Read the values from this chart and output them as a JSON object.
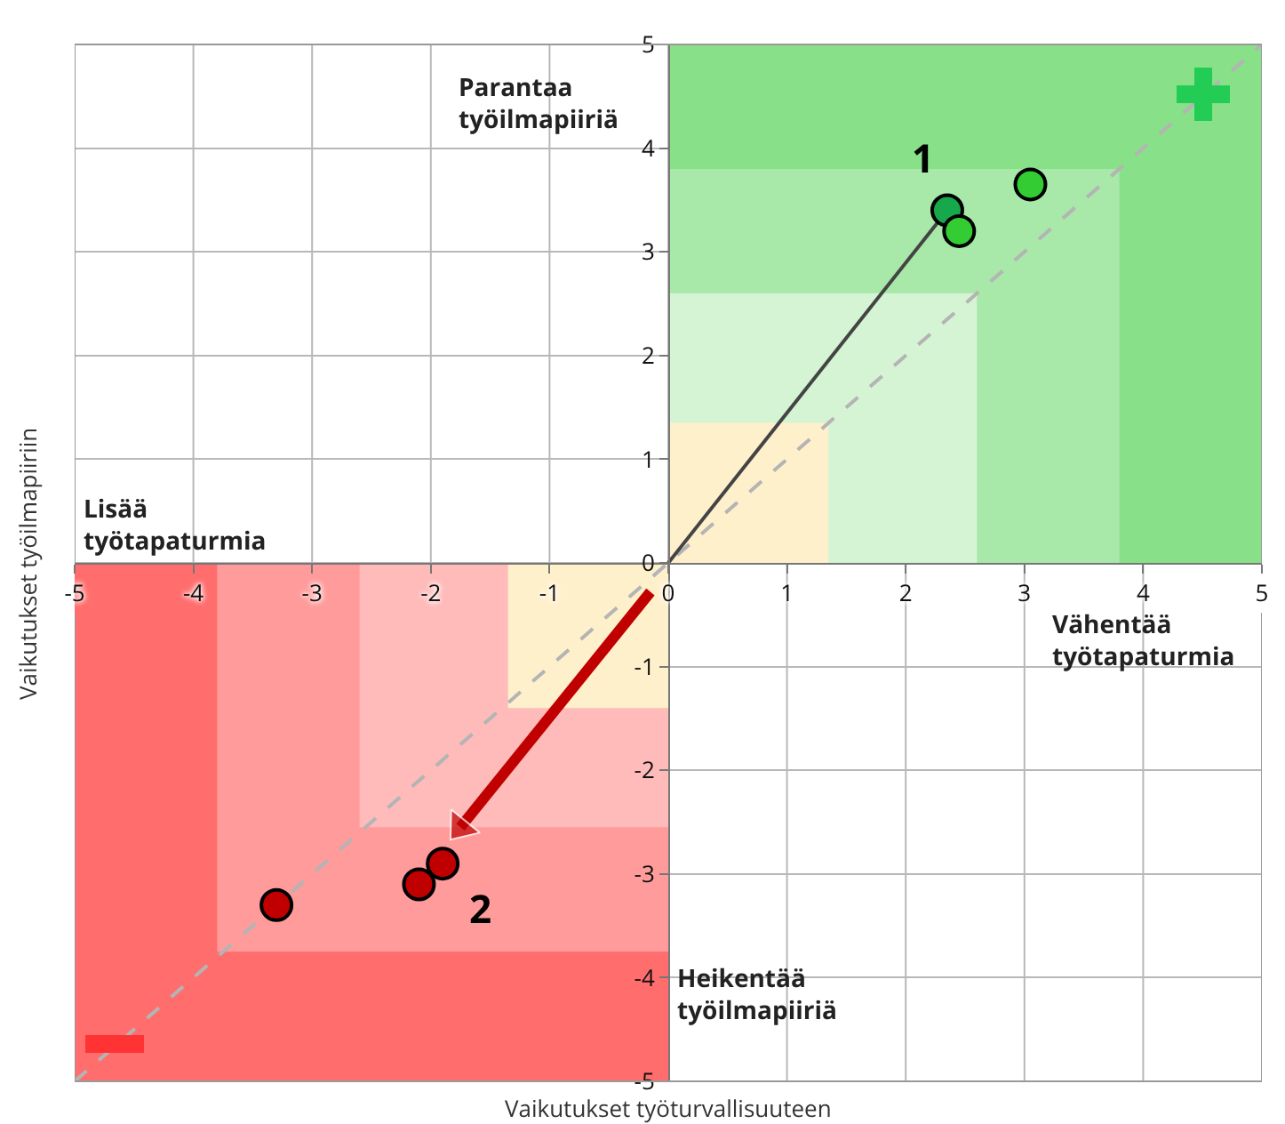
{
  "chart_data": {
    "type": "scatter",
    "xlabel": "Vaikutukset työturvallisuuteen",
    "ylabel": "Vaikutukset työilmapiiriin",
    "xlim": [
      -5,
      5
    ],
    "ylim": [
      -5,
      5
    ],
    "xticks": [
      -5,
      -4,
      -3,
      -2,
      -1,
      0,
      1,
      2,
      3,
      4,
      5
    ],
    "yticks": [
      -5,
      -4,
      -3,
      -2,
      -1,
      0,
      1,
      2,
      3,
      4,
      5
    ],
    "grid": true,
    "annotations": [
      "Parantaa\ntyöilmapiiriä",
      "Lisää\ntyötapaturmia",
      "Vähentää\ntyötapaturmia",
      "Heikentää\ntyöilmapiiriä",
      "1",
      "2"
    ],
    "series": [
      {
        "type": "area",
        "color": "#88e088",
        "x": [
          0,
          5
        ],
        "values": [
          5,
          5
        ]
      },
      {
        "type": "area",
        "color": "#a8e8a8",
        "x": [
          0,
          3.8
        ],
        "values": [
          3.8,
          3.8
        ]
      },
      {
        "type": "area",
        "color": "#d4f4d4",
        "x": [
          0,
          2.6
        ],
        "values": [
          2.6,
          2.6
        ]
      },
      {
        "type": "area",
        "color": "#fff0cc",
        "x": [
          0,
          1.35
        ],
        "values": [
          1.35,
          1.35
        ]
      },
      {
        "type": "area",
        "color": "#ff6d6d",
        "x": [
          -5,
          0
        ],
        "values": [
          -5,
          -5
        ]
      },
      {
        "type": "area",
        "color": "#ff9b9b",
        "x": [
          -3.8,
          0
        ],
        "values": [
          -3.75,
          -3.75
        ]
      },
      {
        "type": "area",
        "color": "#ffbaba",
        "x": [
          -2.6,
          0
        ],
        "values": [
          -2.55,
          -2.55
        ]
      },
      {
        "type": "area",
        "color": "#fff0cc",
        "x": [
          -1.35,
          0
        ],
        "values": [
          -1.4,
          -1.4
        ]
      },
      {
        "type": "line",
        "color": "#b4b4b4",
        "line_style": "dashed",
        "marker": "none",
        "x": [
          -5,
          5
        ],
        "values": [
          -5,
          5
        ]
      },
      {
        "type": "line",
        "color": "#444444",
        "line_style": "solid",
        "marker": "none",
        "x": [
          0,
          2.35
        ],
        "values": [
          0,
          3.4
        ]
      },
      {
        "type": "line",
        "color": "#c00000",
        "line_style": "solid",
        "marker": "triangle",
        "x": [
          -0.15,
          -1.75
        ],
        "values": [
          -0.28,
          -2.55
        ]
      },
      {
        "marker": "circle",
        "color": "#16a84a",
        "x": [
          2.35
        ],
        "values": [
          3.4
        ]
      },
      {
        "marker": "circle",
        "color": "#33cc33",
        "x": [
          2.45,
          3.05
        ],
        "values": [
          3.2,
          3.65
        ]
      },
      {
        "marker": "circle",
        "color": "#c00000",
        "x": [
          -3.3,
          -2.1,
          -1.9
        ],
        "values": [
          -3.3,
          -3.1,
          -2.9
        ]
      }
    ]
  }
}
